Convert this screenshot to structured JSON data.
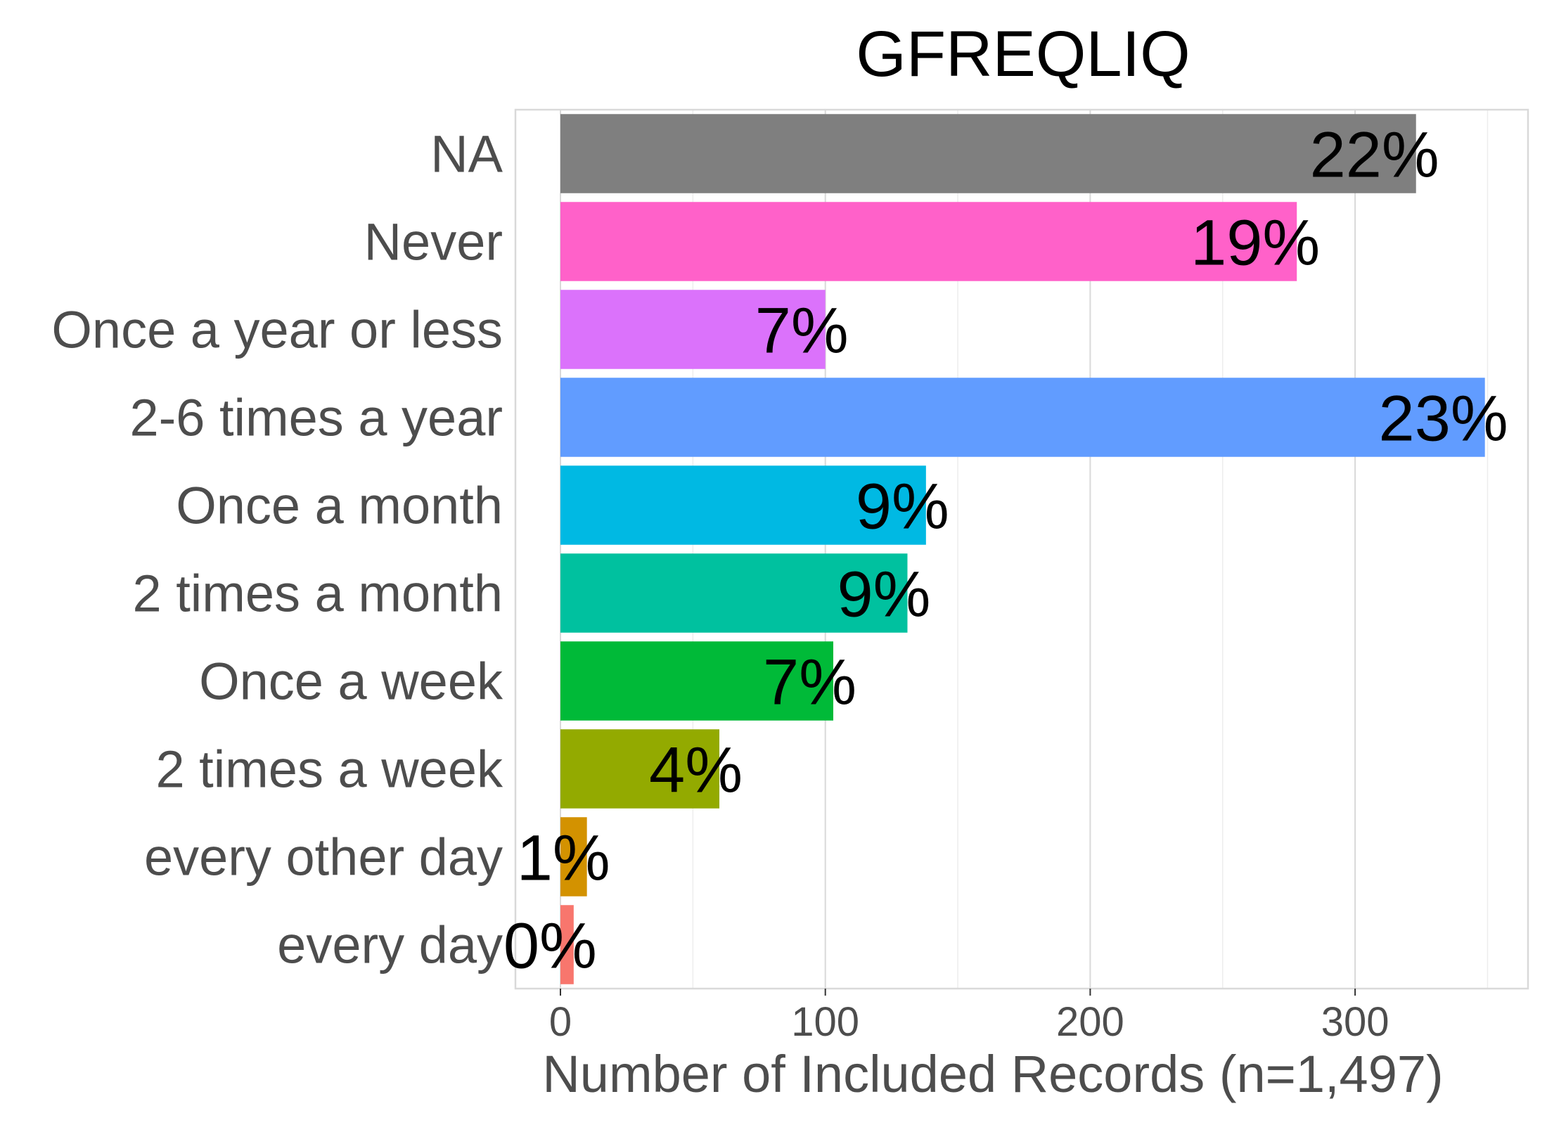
{
  "chart_data": {
    "type": "bar",
    "orientation": "horizontal",
    "title": "GFREQLIQ",
    "xlabel": "Number of Included Records (n=1,497)",
    "ylabel": "",
    "xlim": [
      0,
      365
    ],
    "xticks": [
      0,
      100,
      200,
      300
    ],
    "grid": true,
    "legend": "none",
    "categories": [
      "NA",
      "Never",
      "Once a year or less",
      "2-6 times a year",
      "Once a month",
      "2 times a month",
      "Once a week",
      "2 times a week",
      "every other day",
      "every day"
    ],
    "values": [
      323,
      278,
      100,
      349,
      138,
      131,
      103,
      60,
      10,
      5
    ],
    "labels": [
      "22%",
      "19%",
      "7%",
      "23%",
      "9%",
      "9%",
      "7%",
      "4%",
      "1%",
      "0%"
    ],
    "colors": [
      "#7f7f7f",
      "#ff61c9",
      "#db72fb",
      "#619cff",
      "#00b9e3",
      "#00c19f",
      "#00ba38",
      "#93aa00",
      "#d39200",
      "#f8766d"
    ]
  }
}
